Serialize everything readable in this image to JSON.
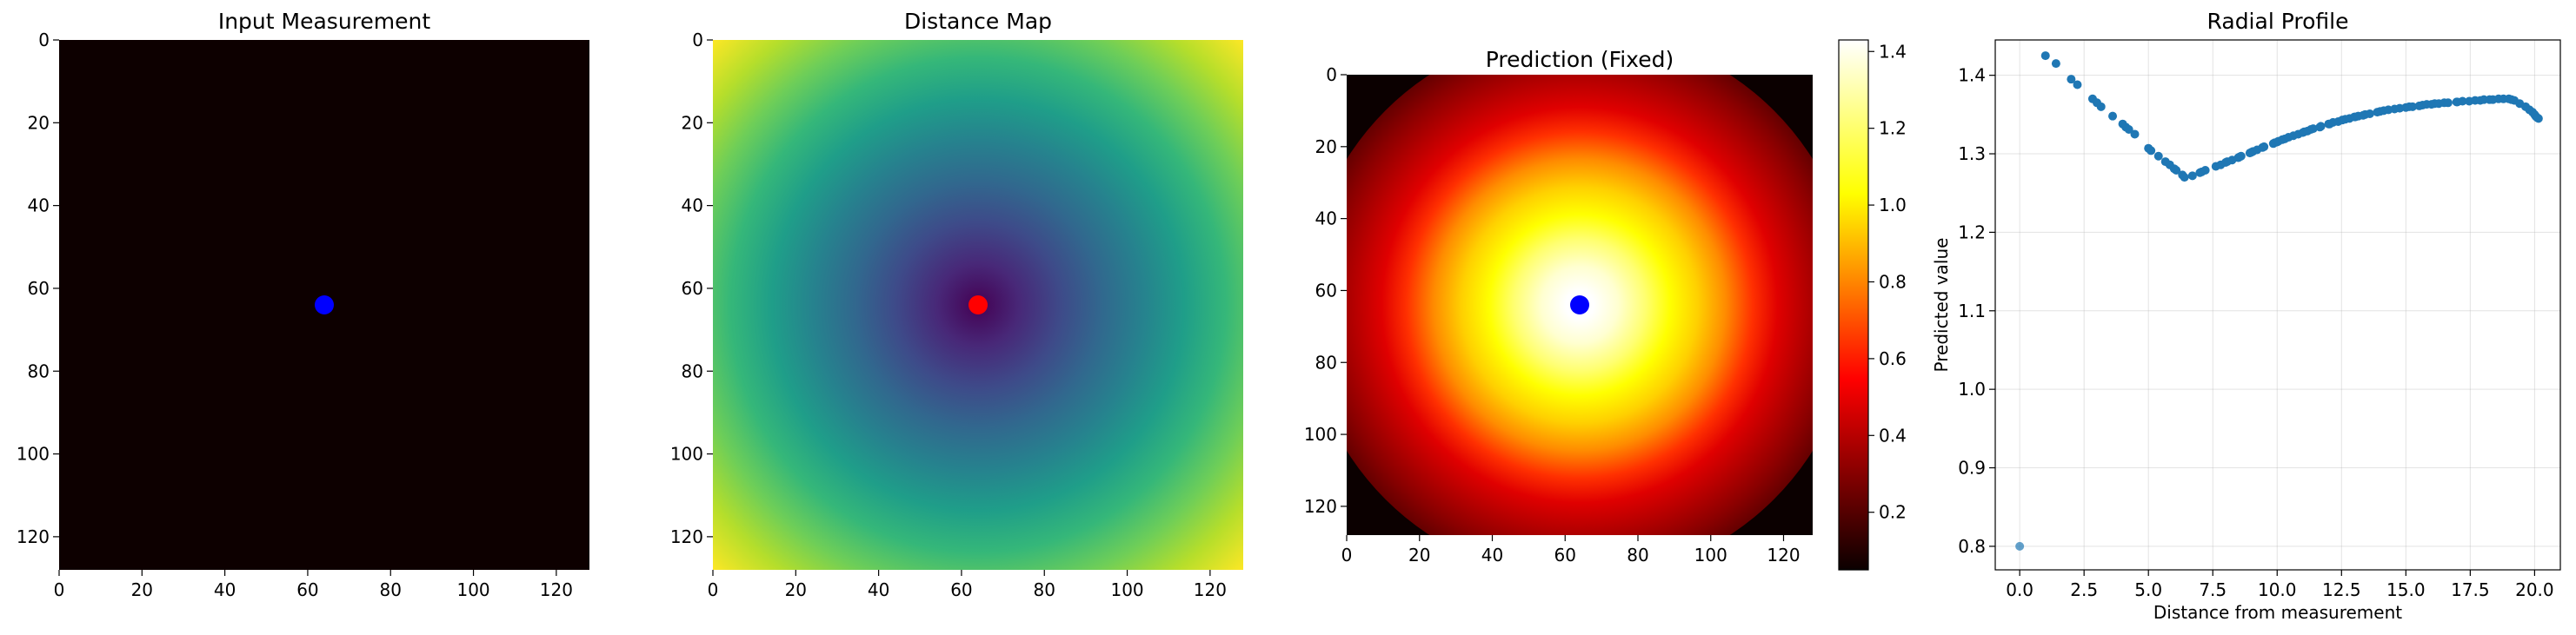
{
  "chart_data": [
    {
      "type": "heatmap",
      "title": "Input Measurement",
      "xlim": [
        0,
        128
      ],
      "ylim": [
        128,
        0
      ],
      "x_ticks": [
        0,
        20,
        40,
        60,
        80,
        100,
        120
      ],
      "y_ticks": [
        0,
        20,
        40,
        60,
        80,
        100,
        120
      ],
      "colormap": "hot",
      "background_color": "#0d0000",
      "marker": {
        "x": 64,
        "y": 64,
        "color": "#0000ff"
      }
    },
    {
      "type": "heatmap",
      "title": "Distance Map",
      "xlim": [
        0,
        128
      ],
      "ylim": [
        128,
        0
      ],
      "x_ticks": [
        0,
        20,
        40,
        60,
        80,
        100,
        120
      ],
      "y_ticks": [
        0,
        20,
        40,
        60,
        80,
        100,
        120
      ],
      "colormap": "viridis",
      "center": {
        "x": 64,
        "y": 64
      },
      "marker": {
        "x": 64,
        "y": 64,
        "color": "#ff0000"
      }
    },
    {
      "type": "heatmap",
      "title": "Prediction (Fixed)",
      "xlim": [
        0,
        128
      ],
      "ylim": [
        128,
        0
      ],
      "x_ticks": [
        0,
        20,
        40,
        60,
        80,
        100,
        120
      ],
      "y_ticks": [
        0,
        20,
        40,
        60,
        80,
        100,
        120
      ],
      "colormap": "hot",
      "center": {
        "x": 64,
        "y": 64
      },
      "marker": {
        "x": 64,
        "y": 64,
        "color": "#0000ff"
      },
      "colorbar": {
        "min": 0.05,
        "max": 1.43,
        "ticks": [
          0.2,
          0.4,
          0.6,
          0.8,
          1.0,
          1.2,
          1.4
        ]
      }
    },
    {
      "type": "scatter",
      "title": "Radial Profile",
      "xlabel": "Distance from measurement",
      "ylabel": "Predicted value",
      "xlim": [
        -0.95,
        21.0
      ],
      "ylim": [
        0.77,
        1.445
      ],
      "x_ticks": [
        0.0,
        2.5,
        5.0,
        7.5,
        10.0,
        12.5,
        15.0,
        17.5,
        20.0
      ],
      "y_ticks": [
        0.8,
        0.9,
        1.0,
        1.1,
        1.2,
        1.3,
        1.4
      ],
      "grid": true,
      "color": "#1f77b4",
      "points": [
        [
          0.0,
          0.8
        ],
        [
          1.0,
          1.425
        ],
        [
          1.41,
          1.415
        ],
        [
          2.0,
          1.395
        ],
        [
          2.24,
          1.388
        ],
        [
          2.83,
          1.37
        ],
        [
          3.0,
          1.365
        ],
        [
          3.16,
          1.36
        ],
        [
          3.61,
          1.348
        ],
        [
          4.0,
          1.338
        ],
        [
          4.12,
          1.334
        ],
        [
          4.24,
          1.331
        ],
        [
          4.47,
          1.325
        ],
        [
          5.0,
          1.307
        ],
        [
          5.1,
          1.304
        ],
        [
          5.39,
          1.297
        ],
        [
          5.66,
          1.29
        ],
        [
          5.83,
          1.286
        ],
        [
          6.0,
          1.281
        ],
        [
          6.08,
          1.279
        ],
        [
          6.32,
          1.273
        ],
        [
          6.4,
          1.27
        ],
        [
          6.71,
          1.272
        ],
        [
          7.0,
          1.276
        ],
        [
          7.07,
          1.277
        ],
        [
          7.21,
          1.279
        ],
        [
          7.62,
          1.284
        ],
        [
          7.81,
          1.286
        ],
        [
          8.0,
          1.289
        ],
        [
          8.06,
          1.29
        ],
        [
          8.25,
          1.292
        ],
        [
          8.49,
          1.295
        ],
        [
          8.54,
          1.296
        ],
        [
          8.6,
          1.297
        ],
        [
          8.94,
          1.301
        ],
        [
          9.0,
          1.302
        ],
        [
          9.06,
          1.303
        ],
        [
          9.22,
          1.305
        ],
        [
          9.43,
          1.308
        ],
        [
          9.49,
          1.309
        ],
        [
          9.85,
          1.313
        ],
        [
          9.9,
          1.314
        ],
        [
          10.0,
          1.315
        ],
        [
          10.05,
          1.316
        ],
        [
          10.2,
          1.318
        ],
        [
          10.3,
          1.319
        ],
        [
          10.44,
          1.321
        ],
        [
          10.63,
          1.323
        ],
        [
          10.82,
          1.325
        ],
        [
          11.0,
          1.327
        ],
        [
          11.05,
          1.328
        ],
        [
          11.18,
          1.329
        ],
        [
          11.31,
          1.331
        ],
        [
          11.4,
          1.332
        ],
        [
          11.66,
          1.334
        ],
        [
          11.7,
          1.335
        ],
        [
          12.0,
          1.338
        ],
        [
          12.04,
          1.338
        ],
        [
          12.17,
          1.34
        ],
        [
          12.37,
          1.341
        ],
        [
          12.53,
          1.343
        ],
        [
          12.65,
          1.344
        ],
        [
          12.81,
          1.345
        ],
        [
          13.0,
          1.347
        ],
        [
          13.04,
          1.347
        ],
        [
          13.15,
          1.348
        ],
        [
          13.34,
          1.349
        ],
        [
          13.42,
          1.35
        ],
        [
          13.6,
          1.351
        ],
        [
          13.89,
          1.353
        ],
        [
          14.0,
          1.354
        ],
        [
          14.14,
          1.355
        ],
        [
          14.32,
          1.356
        ],
        [
          14.56,
          1.357
        ],
        [
          14.76,
          1.358
        ],
        [
          15.0,
          1.359
        ],
        [
          15.13,
          1.36
        ],
        [
          15.26,
          1.36
        ],
        [
          15.52,
          1.361
        ],
        [
          15.65,
          1.362
        ],
        [
          15.81,
          1.363
        ],
        [
          16.0,
          1.363
        ],
        [
          16.12,
          1.364
        ],
        [
          16.28,
          1.364
        ],
        [
          16.49,
          1.365
        ],
        [
          16.64,
          1.365
        ],
        [
          16.97,
          1.366
        ],
        [
          17.0,
          1.366
        ],
        [
          17.2,
          1.367
        ],
        [
          17.46,
          1.367
        ],
        [
          17.69,
          1.368
        ],
        [
          17.89,
          1.368
        ],
        [
          18.03,
          1.369
        ],
        [
          18.25,
          1.369
        ],
        [
          18.38,
          1.369
        ],
        [
          18.6,
          1.37
        ],
        [
          18.79,
          1.37
        ],
        [
          19.0,
          1.37
        ],
        [
          19.1,
          1.369
        ],
        [
          19.21,
          1.368
        ],
        [
          19.42,
          1.364
        ],
        [
          19.65,
          1.36
        ],
        [
          19.8,
          1.356
        ],
        [
          19.92,
          1.353
        ],
        [
          20.0,
          1.35
        ],
        [
          20.04,
          1.348
        ],
        [
          20.1,
          1.346
        ],
        [
          20.15,
          1.345
        ]
      ]
    }
  ]
}
